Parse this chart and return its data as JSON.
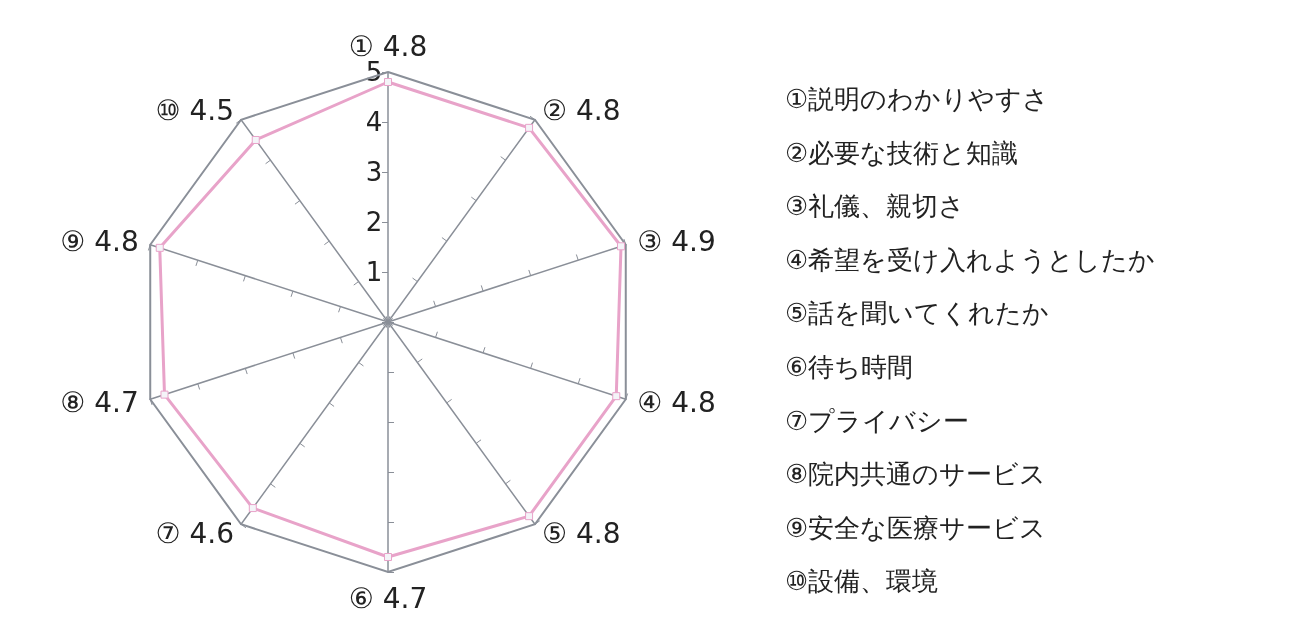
{
  "chart_data": {
    "type": "radar",
    "categories": [
      "① 4.8",
      "② 4.8",
      "③ 4.9",
      "④ 4.8",
      "⑤ 4.8",
      "⑥ 4.7",
      "⑦ 4.6",
      "⑧ 4.7",
      "⑨ 4.8",
      "⑩ 4.5"
    ],
    "series": [
      {
        "color": "#e8a3c9",
        "values": [
          4.8,
          4.8,
          4.9,
          4.8,
          4.8,
          4.7,
          4.6,
          4.7,
          4.8,
          4.5
        ]
      }
    ],
    "ylim": [
      0,
      5
    ],
    "yticks": [
      1,
      2,
      3,
      4,
      5
    ],
    "marker": "square",
    "annotations": [
      "①説明のわかりやすさ",
      "②必要な技術と知識",
      "③礼儀、親切さ",
      "④希望を受け入れようとしたか",
      "⑤話を聞いてくれたか",
      "⑥待ち時間",
      "⑦プライバシー",
      "⑧院内共通のサービス",
      "⑨安全な医療サービス",
      "⑩設備、環境"
    ]
  }
}
